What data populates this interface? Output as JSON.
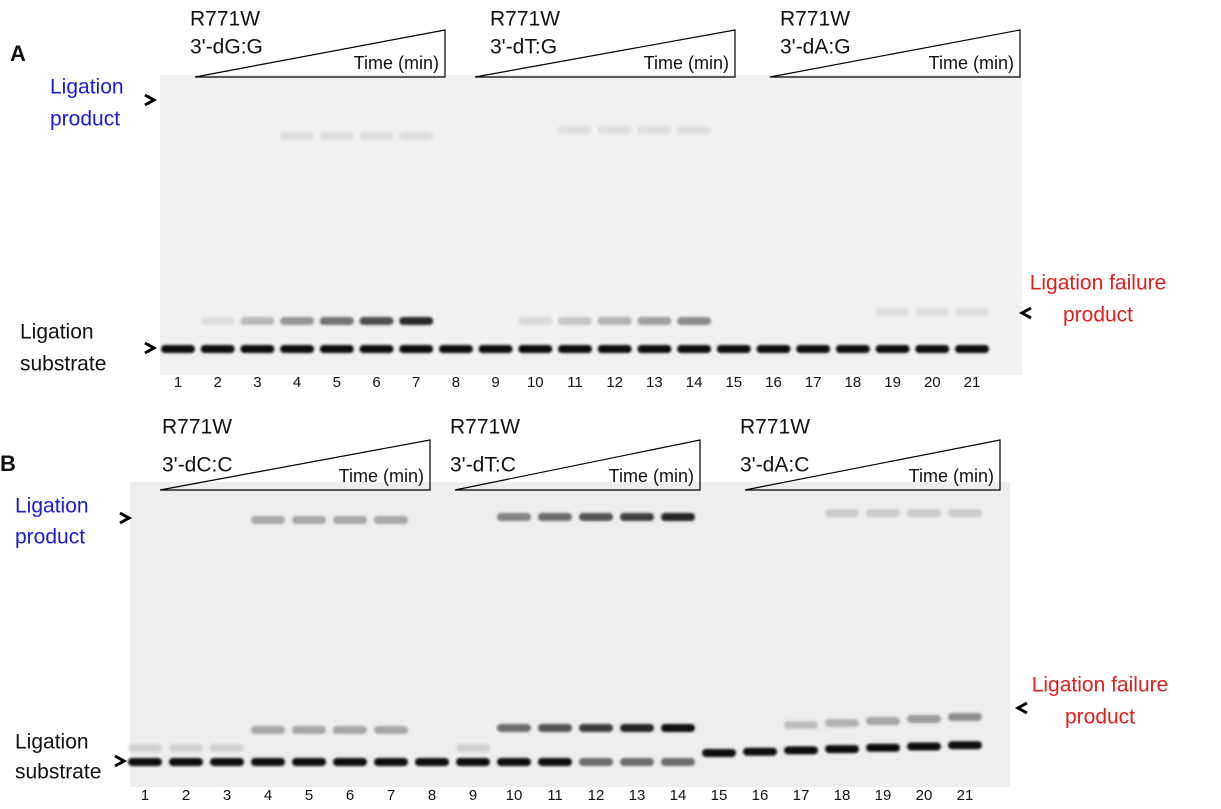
{
  "panels": [
    {
      "label": "A",
      "groups": [
        {
          "name": "R771W",
          "mismatch": "3'-dG:G",
          "axis": "Time (min)"
        },
        {
          "name": "R771W",
          "mismatch": "3'-dT:G",
          "axis": "Time (min)"
        },
        {
          "name": "R771W",
          "mismatch": "3'-dA:G",
          "axis": "Time (min)"
        }
      ],
      "product_label": [
        "Ligation",
        "product"
      ],
      "substrate_label": [
        "Ligation",
        "substrate"
      ],
      "failure_label": [
        "Ligation failure",
        "product"
      ],
      "lanes": [
        1,
        2,
        3,
        4,
        5,
        6,
        7,
        8,
        9,
        10,
        11,
        12,
        13,
        14,
        15,
        16,
        17,
        18,
        19,
        20,
        21
      ]
    },
    {
      "label": "B",
      "groups": [
        {
          "name": "R771W",
          "mismatch": "3'-dC:C",
          "axis": "Time (min)"
        },
        {
          "name": "R771W",
          "mismatch": "3'-dT:C",
          "axis": "Time (min)"
        },
        {
          "name": "R771W",
          "mismatch": "3'-dA:C",
          "axis": "Time (min)"
        }
      ],
      "product_label": [
        "Ligation",
        "product"
      ],
      "substrate_label": [
        "Ligation",
        "substrate"
      ],
      "failure_label": [
        "Ligation failure",
        "product"
      ],
      "lanes": [
        1,
        2,
        3,
        4,
        5,
        6,
        7,
        8,
        9,
        10,
        11,
        12,
        13,
        14,
        15,
        16,
        17,
        18,
        19,
        20,
        21
      ]
    }
  ]
}
